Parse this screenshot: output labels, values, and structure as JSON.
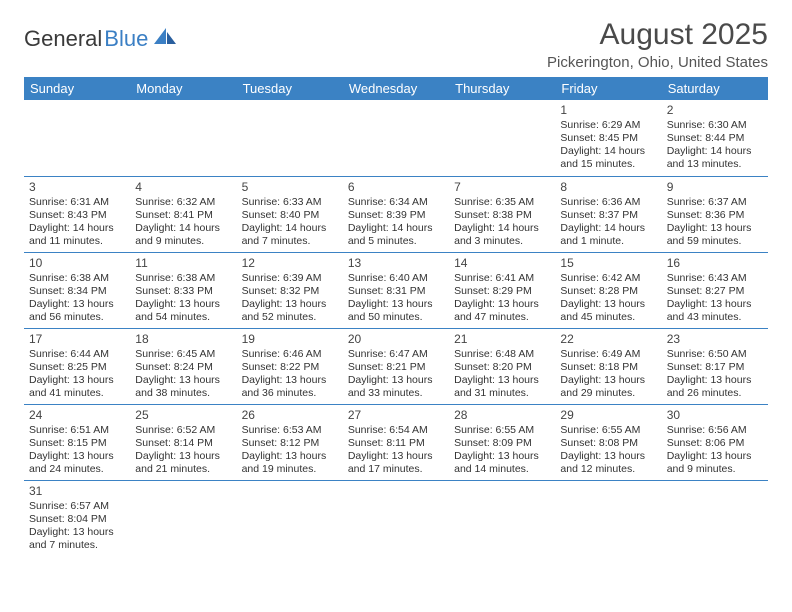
{
  "logo": {
    "text1": "General",
    "text2": "Blue"
  },
  "title": "August 2025",
  "location": "Pickerington, Ohio, United States",
  "colors": {
    "header_bg": "#3b82c4",
    "header_text": "#ffffff",
    "cell_border": "#3b82c4",
    "text": "#333333",
    "title_color": "#4a4a4a"
  },
  "day_headers": [
    "Sunday",
    "Monday",
    "Tuesday",
    "Wednesday",
    "Thursday",
    "Friday",
    "Saturday"
  ],
  "weeks": [
    [
      null,
      null,
      null,
      null,
      null,
      {
        "d": "1",
        "sr": "6:29 AM",
        "ss": "8:45 PM",
        "dl": "14 hours and 15 minutes."
      },
      {
        "d": "2",
        "sr": "6:30 AM",
        "ss": "8:44 PM",
        "dl": "14 hours and 13 minutes."
      }
    ],
    [
      {
        "d": "3",
        "sr": "6:31 AM",
        "ss": "8:43 PM",
        "dl": "14 hours and 11 minutes."
      },
      {
        "d": "4",
        "sr": "6:32 AM",
        "ss": "8:41 PM",
        "dl": "14 hours and 9 minutes."
      },
      {
        "d": "5",
        "sr": "6:33 AM",
        "ss": "8:40 PM",
        "dl": "14 hours and 7 minutes."
      },
      {
        "d": "6",
        "sr": "6:34 AM",
        "ss": "8:39 PM",
        "dl": "14 hours and 5 minutes."
      },
      {
        "d": "7",
        "sr": "6:35 AM",
        "ss": "8:38 PM",
        "dl": "14 hours and 3 minutes."
      },
      {
        "d": "8",
        "sr": "6:36 AM",
        "ss": "8:37 PM",
        "dl": "14 hours and 1 minute."
      },
      {
        "d": "9",
        "sr": "6:37 AM",
        "ss": "8:36 PM",
        "dl": "13 hours and 59 minutes."
      }
    ],
    [
      {
        "d": "10",
        "sr": "6:38 AM",
        "ss": "8:34 PM",
        "dl": "13 hours and 56 minutes."
      },
      {
        "d": "11",
        "sr": "6:38 AM",
        "ss": "8:33 PM",
        "dl": "13 hours and 54 minutes."
      },
      {
        "d": "12",
        "sr": "6:39 AM",
        "ss": "8:32 PM",
        "dl": "13 hours and 52 minutes."
      },
      {
        "d": "13",
        "sr": "6:40 AM",
        "ss": "8:31 PM",
        "dl": "13 hours and 50 minutes."
      },
      {
        "d": "14",
        "sr": "6:41 AM",
        "ss": "8:29 PM",
        "dl": "13 hours and 47 minutes."
      },
      {
        "d": "15",
        "sr": "6:42 AM",
        "ss": "8:28 PM",
        "dl": "13 hours and 45 minutes."
      },
      {
        "d": "16",
        "sr": "6:43 AM",
        "ss": "8:27 PM",
        "dl": "13 hours and 43 minutes."
      }
    ],
    [
      {
        "d": "17",
        "sr": "6:44 AM",
        "ss": "8:25 PM",
        "dl": "13 hours and 41 minutes."
      },
      {
        "d": "18",
        "sr": "6:45 AM",
        "ss": "8:24 PM",
        "dl": "13 hours and 38 minutes."
      },
      {
        "d": "19",
        "sr": "6:46 AM",
        "ss": "8:22 PM",
        "dl": "13 hours and 36 minutes."
      },
      {
        "d": "20",
        "sr": "6:47 AM",
        "ss": "8:21 PM",
        "dl": "13 hours and 33 minutes."
      },
      {
        "d": "21",
        "sr": "6:48 AM",
        "ss": "8:20 PM",
        "dl": "13 hours and 31 minutes."
      },
      {
        "d": "22",
        "sr": "6:49 AM",
        "ss": "8:18 PM",
        "dl": "13 hours and 29 minutes."
      },
      {
        "d": "23",
        "sr": "6:50 AM",
        "ss": "8:17 PM",
        "dl": "13 hours and 26 minutes."
      }
    ],
    [
      {
        "d": "24",
        "sr": "6:51 AM",
        "ss": "8:15 PM",
        "dl": "13 hours and 24 minutes."
      },
      {
        "d": "25",
        "sr": "6:52 AM",
        "ss": "8:14 PM",
        "dl": "13 hours and 21 minutes."
      },
      {
        "d": "26",
        "sr": "6:53 AM",
        "ss": "8:12 PM",
        "dl": "13 hours and 19 minutes."
      },
      {
        "d": "27",
        "sr": "6:54 AM",
        "ss": "8:11 PM",
        "dl": "13 hours and 17 minutes."
      },
      {
        "d": "28",
        "sr": "6:55 AM",
        "ss": "8:09 PM",
        "dl": "13 hours and 14 minutes."
      },
      {
        "d": "29",
        "sr": "6:55 AM",
        "ss": "8:08 PM",
        "dl": "13 hours and 12 minutes."
      },
      {
        "d": "30",
        "sr": "6:56 AM",
        "ss": "8:06 PM",
        "dl": "13 hours and 9 minutes."
      }
    ],
    [
      {
        "d": "31",
        "sr": "6:57 AM",
        "ss": "8:04 PM",
        "dl": "13 hours and 7 minutes."
      },
      null,
      null,
      null,
      null,
      null,
      null
    ]
  ],
  "labels": {
    "sunrise": "Sunrise:",
    "sunset": "Sunset:",
    "daylight": "Daylight:"
  }
}
